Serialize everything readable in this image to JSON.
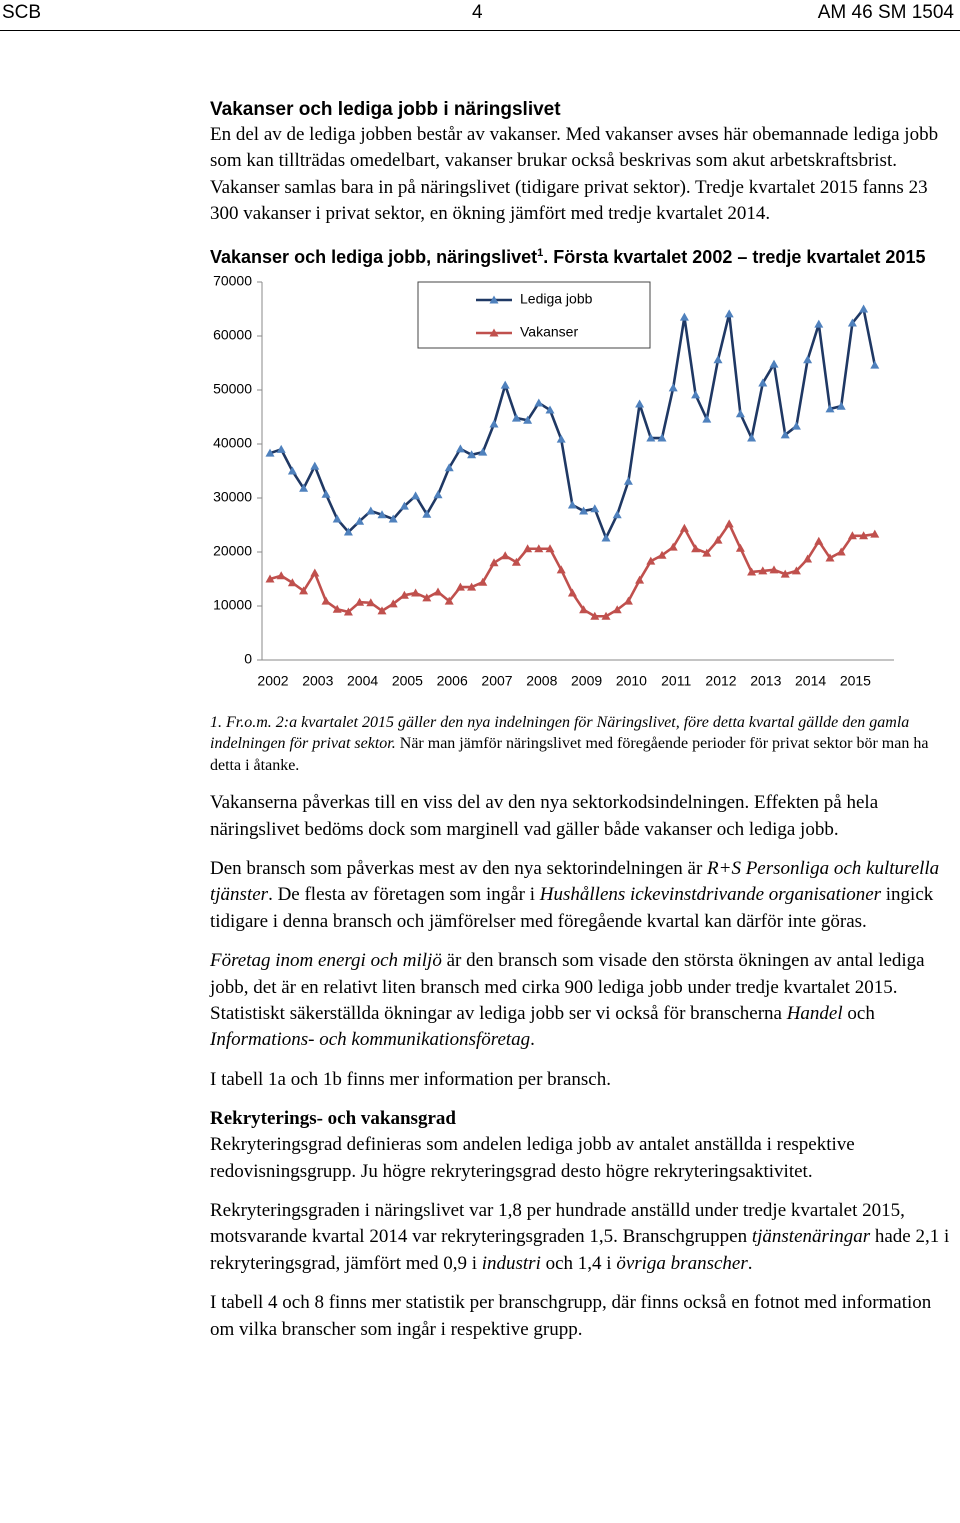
{
  "header": {
    "left": "SCB",
    "page": "4",
    "right": "AM 46 SM 1504"
  },
  "section1": {
    "heading": "Vakanser och lediga jobb i näringslivet",
    "paragraph": "En del av de lediga jobben består av vakanser. Med vakanser avses här obemannade lediga jobb som kan tillträdas omedelbart, vakanser brukar också beskrivas som akut arbetskraftsbrist. Vakanser samlas bara in på näringslivet (tidigare privat sektor). Tredje kvartalet 2015 fanns 23 300 vakanser i privat sektor, en ökning jämfört med tredje kvartalet 2014."
  },
  "chart_data": {
    "type": "line",
    "title": "Vakanser och lediga jobb, näringslivet",
    "footnote_ref": "1",
    "subtitle": ". Första kvartalet 2002 – tredje kvartalet 2015",
    "categories": [
      "2002",
      null,
      null,
      null,
      "2003",
      null,
      null,
      null,
      "2004",
      null,
      null,
      null,
      "2005",
      null,
      null,
      null,
      "2006",
      null,
      null,
      null,
      "2007",
      null,
      null,
      null,
      "2008",
      null,
      null,
      null,
      "2009",
      null,
      null,
      null,
      "2010",
      null,
      null,
      null,
      "2011",
      null,
      null,
      null,
      "2012",
      null,
      null,
      null,
      "2013",
      null,
      null,
      null,
      "2014",
      null,
      null,
      null,
      "2015",
      null,
      null
    ],
    "series": [
      {
        "name": "Lediga jobb",
        "color": "#1f3864",
        "marker_color": "#4f81bd",
        "values": [
          38300,
          39000,
          35000,
          31800,
          35900,
          30700,
          26100,
          23700,
          25700,
          27600,
          26900,
          26100,
          28500,
          30400,
          27000,
          30600,
          35600,
          39100,
          38000,
          38500,
          43700,
          50900,
          44800,
          44400,
          47600,
          46300,
          40900,
          28700,
          27600,
          28000,
          22600,
          26900,
          33100,
          47400,
          41100,
          41100,
          50400,
          63500,
          49100,
          44600,
          55600,
          64100,
          45600,
          41100,
          51300,
          54800,
          41700,
          43300,
          55600,
          62200,
          46500,
          47000,
          62400,
          65000,
          54600
        ]
      },
      {
        "name": "Vakanser",
        "color": "#c0504d",
        "marker_color": "#c0504d",
        "values": [
          15000,
          15600,
          14300,
          12800,
          16100,
          10900,
          9400,
          8900,
          10700,
          10600,
          9100,
          10400,
          12000,
          12400,
          11500,
          12600,
          10900,
          13500,
          13500,
          14400,
          18000,
          19300,
          18100,
          20600,
          20600,
          20600,
          16700,
          12400,
          9300,
          8100,
          8100,
          9300,
          10900,
          14800,
          18300,
          19400,
          20900,
          24400,
          20600,
          19800,
          22200,
          25200,
          20700,
          16300,
          16500,
          16700,
          15900,
          16500,
          18700,
          22000,
          18900,
          20000,
          23000,
          23000,
          23300
        ]
      }
    ],
    "ylim": [
      0,
      70000
    ],
    "yticks": [
      0,
      10000,
      20000,
      30000,
      40000,
      50000,
      60000,
      70000
    ],
    "grid": false
  },
  "footnote": {
    "main": "1. Fr.o.m. 2:a kvartalet 2015 gäller den nya indelningen för Näringslivet, före detta kvartal gällde den gamla indelningen för privat sektor.",
    "rest": " När man jämför näringslivet med föregående perioder för privat sektor bör man ha detta i åtanke."
  },
  "body": [
    [
      {
        "text": "Vakanserna påverkas till en viss del av den nya sektorkodsindelningen. Effekten på hela näringslivet bedöms dock som marginell vad gäller både vakanser och lediga jobb."
      }
    ],
    [
      {
        "text": "Den bransch som påverkas mest av den nya sektorindelningen är "
      },
      {
        "text": "R+S Personliga och kulturella tjänster",
        "italic": true
      },
      {
        "text": ". De flesta av företagen som ingår i "
      },
      {
        "text": "Hushållens ickevinstdrivande organisationer",
        "italic": true
      },
      {
        "text": " ingick tidigare i denna bransch och jämförelser med föregående kvartal kan därför inte göras."
      }
    ],
    [
      {
        "text": "Företag inom energi och miljö",
        "italic": true
      },
      {
        "text": " är den bransch som visade den största ökningen av antal lediga jobb, det är en relativt liten bransch med cirka 900 lediga jobb under tredje kvartalet 2015. Statistiskt säkerställda ökningar av lediga jobb ser vi också för branscherna "
      },
      {
        "text": "Handel",
        "italic": true
      },
      {
        "text": " och "
      },
      {
        "text": "Informations- och kommunikationsföretag",
        "italic": true
      },
      {
        "text": "."
      }
    ],
    [
      {
        "text": "I tabell 1a och 1b finns mer information per bransch."
      }
    ]
  ],
  "section2": {
    "heading": "Rekryterings- och vakansgrad",
    "body": [
      [
        {
          "text": "Rekryteringsgrad definieras som andelen lediga jobb av antalet anställda i respektive redovisningsgrupp. Ju högre rekryteringsgrad desto högre rekryteringsaktivitet."
        }
      ],
      [
        {
          "text": "Rekryteringsgraden i näringslivet var 1,8 per hundrade anställd under tredje kvartalet 2015, motsvarande kvartal 2014 var rekryteringsgraden 1,5. Branschgruppen "
        },
        {
          "text": "tjänstenäringar",
          "italic": true
        },
        {
          "text": " hade 2,1 i rekryteringsgrad, jämfört med 0,9 i "
        },
        {
          "text": "industri",
          "italic": true
        },
        {
          "text": " och 1,4 i "
        },
        {
          "text": "övriga branscher",
          "italic": true
        },
        {
          "text": "."
        }
      ],
      [
        {
          "text": "I tabell 4 och 8 finns mer statistik per branschgrupp, där finns också en fotnot med information om vilka branscher som ingår i respektive grupp."
        }
      ]
    ]
  }
}
